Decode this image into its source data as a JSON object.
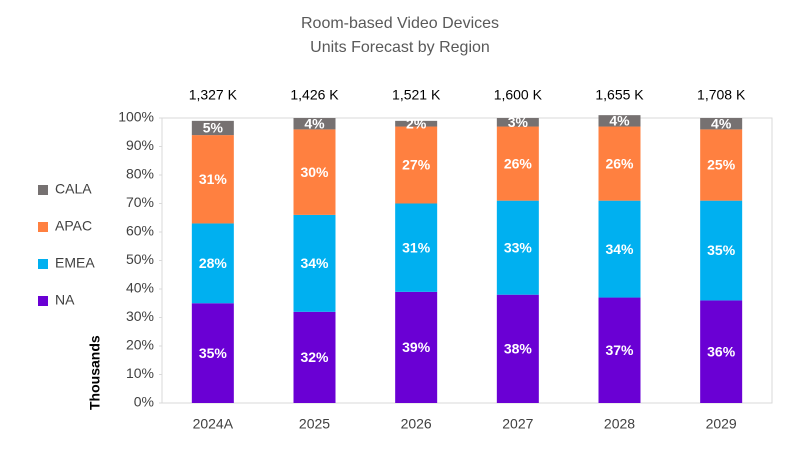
{
  "chart_data": {
    "type": "stacked_bar_100",
    "title": [
      "Room-based Video Devices",
      "Units Forecast by Region"
    ],
    "y_axis_label": "Thousands",
    "categories": [
      "2024A",
      "2025",
      "2026",
      "2027",
      "2028",
      "2029"
    ],
    "totals": [
      1327,
      1426,
      1521,
      1600,
      1655,
      1708
    ],
    "total_labels": [
      "1,327 K",
      "1,426 K",
      "1,521 K",
      "1,600 K",
      "1,655 K",
      "1,708 K"
    ],
    "series": [
      {
        "name": "NA",
        "color": "#6a00d4",
        "values": [
          35,
          32,
          39,
          38,
          37,
          36
        ],
        "value_labels": [
          "35%",
          "32%",
          "39%",
          "38%",
          "37%",
          "36%"
        ]
      },
      {
        "name": "EMEA",
        "color": "#00b0f0",
        "values": [
          28,
          34,
          31,
          33,
          34,
          35
        ],
        "value_labels": [
          "28%",
          "34%",
          "31%",
          "33%",
          "34%",
          "35%"
        ]
      },
      {
        "name": "APAC",
        "color": "#ff8040",
        "values": [
          31,
          30,
          27,
          26,
          26,
          25
        ],
        "value_labels": [
          "31%",
          "30%",
          "27%",
          "26%",
          "26%",
          "25%"
        ]
      },
      {
        "name": "CALA",
        "color": "#767171",
        "values": [
          5,
          4,
          2,
          3,
          4,
          4
        ],
        "value_labels": [
          "5%",
          "4%",
          "2%",
          "3%",
          "4%",
          "4%"
        ]
      }
    ],
    "ylim": [
      0,
      100
    ],
    "yticks": [
      {
        "value": 0,
        "label": "0%"
      },
      {
        "value": 10,
        "label": "10%"
      },
      {
        "value": 20,
        "label": "20%"
      },
      {
        "value": 30,
        "label": "30%"
      },
      {
        "value": 40,
        "label": "40%"
      },
      {
        "value": 50,
        "label": "50%"
      },
      {
        "value": 60,
        "label": "60%"
      },
      {
        "value": 70,
        "label": "70%"
      },
      {
        "value": 80,
        "label": "80%"
      },
      {
        "value": 90,
        "label": "90%"
      },
      {
        "value": 100,
        "label": "100%"
      }
    ],
    "legend": "left"
  }
}
